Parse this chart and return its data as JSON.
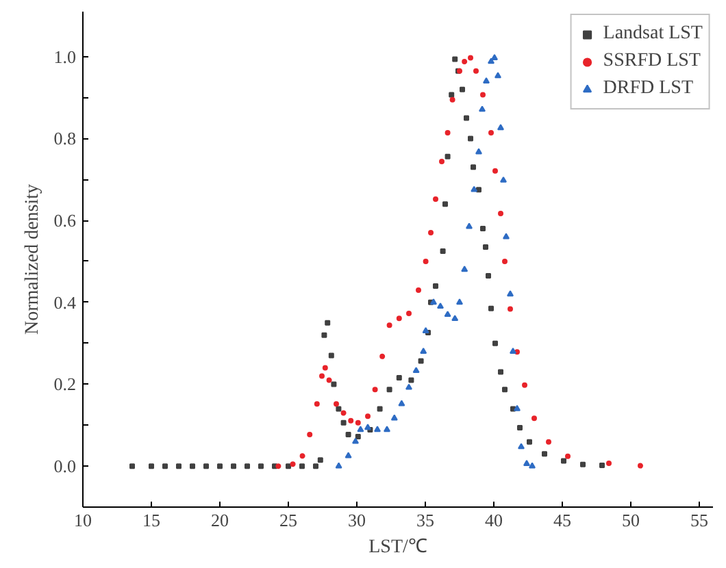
{
  "chart_data": {
    "type": "scatter",
    "xlabel": "LST/℃",
    "ylabel": "Normalized density",
    "xlim": [
      10,
      56
    ],
    "ylim": [
      -0.1,
      1.11
    ],
    "xticks": [
      10,
      15,
      20,
      25,
      30,
      35,
      40,
      45,
      50,
      55
    ],
    "yticks": [
      {
        "value": 0,
        "label": "0.0"
      },
      {
        "value": 0.1,
        "label": null
      },
      {
        "value": 0.2,
        "label": "0.2"
      },
      {
        "value": 0.3,
        "label": null
      },
      {
        "value": 0.4,
        "label": "0.4"
      },
      {
        "value": 0.5,
        "label": null
      },
      {
        "value": 0.6,
        "label": "0.6"
      },
      {
        "value": 0.7,
        "label": null
      },
      {
        "value": 0.8,
        "label": "0.8"
      },
      {
        "value": 0.9,
        "label": null
      },
      {
        "value": 1.0,
        "label": "1.0"
      }
    ],
    "grid": false,
    "legend": "top right",
    "series": [
      {
        "name": "Landsat LST",
        "color": "#404040",
        "marker": "square",
        "x": [
          13.6,
          15,
          16,
          17,
          18,
          19,
          20,
          21,
          22,
          23,
          24,
          25,
          26,
          27,
          27.34,
          27.62,
          27.86,
          28.14,
          28.32,
          28.67,
          29.03,
          29.38,
          30.09,
          30.97,
          31.68,
          32.38,
          33.09,
          33.97,
          34.68,
          35.2,
          35.4,
          35.75,
          36.28,
          36.45,
          36.63,
          36.91,
          37.16,
          37.4,
          37.7,
          38.0,
          38.3,
          38.5,
          38.9,
          39.2,
          39.4,
          39.6,
          39.8,
          40.1,
          40.5,
          40.8,
          41.4,
          41.9,
          42.6,
          43.7,
          45.1,
          46.5,
          47.9
        ],
        "values": [
          0,
          0,
          0,
          0,
          0,
          0,
          0,
          0,
          0,
          0,
          0,
          0,
          0,
          0,
          0.015,
          0.32,
          0.35,
          0.27,
          0.2,
          0.14,
          0.106,
          0.077,
          0.072,
          0.089,
          0.14,
          0.187,
          0.216,
          0.21,
          0.257,
          0.326,
          0.4,
          0.44,
          0.525,
          0.64,
          0.756,
          0.907,
          0.994,
          0.965,
          0.92,
          0.85,
          0.8,
          0.73,
          0.675,
          0.58,
          0.535,
          0.465,
          0.385,
          0.3,
          0.23,
          0.187,
          0.14,
          0.094,
          0.059,
          0.03,
          0.013,
          0.004,
          0.002
        ]
      },
      {
        "name": "SSRFD LST",
        "color": "#e8232a",
        "marker": "circle",
        "x": [
          24.27,
          25.33,
          26.03,
          26.56,
          27.09,
          27.45,
          27.69,
          27.98,
          28.5,
          29.03,
          29.56,
          30.09,
          30.8,
          31.33,
          31.86,
          32.38,
          33.09,
          33.8,
          34.5,
          35.03,
          35.4,
          35.75,
          36.2,
          36.63,
          36.98,
          37.5,
          37.86,
          38.3,
          38.7,
          39.2,
          39.8,
          40.1,
          40.5,
          40.8,
          41.2,
          41.7,
          42.25,
          42.95,
          44.0,
          45.4,
          48.4,
          50.7
        ],
        "values": [
          0,
          0.005,
          0.025,
          0.077,
          0.152,
          0.22,
          0.24,
          0.21,
          0.152,
          0.13,
          0.111,
          0.106,
          0.122,
          0.187,
          0.268,
          0.344,
          0.361,
          0.373,
          0.43,
          0.5,
          0.57,
          0.652,
          0.744,
          0.814,
          0.895,
          0.965,
          0.988,
          0.997,
          0.965,
          0.907,
          0.814,
          0.721,
          0.617,
          0.5,
          0.384,
          0.279,
          0.198,
          0.117,
          0.059,
          0.024,
          0.007,
          0.001
        ]
      },
      {
        "name": "DRFD LST",
        "color": "#2e6cc4",
        "marker": "triangle",
        "x": [
          28.68,
          29.38,
          29.9,
          30.27,
          30.8,
          31.5,
          32.2,
          32.74,
          33.27,
          33.8,
          34.33,
          34.86,
          35.03,
          35.6,
          36.1,
          36.63,
          37.16,
          37.5,
          37.86,
          38.2,
          38.56,
          38.9,
          39.15,
          39.45,
          39.8,
          40.05,
          40.3,
          40.5,
          40.7,
          40.9,
          41.2,
          41.4,
          41.7,
          42.0,
          42.4,
          42.8
        ],
        "values": [
          0,
          0.025,
          0.06,
          0.089,
          0.094,
          0.089,
          0.089,
          0.117,
          0.152,
          0.192,
          0.233,
          0.28,
          0.33,
          0.4,
          0.39,
          0.37,
          0.36,
          0.4,
          0.48,
          0.585,
          0.675,
          0.767,
          0.871,
          0.94,
          0.988,
          0.997,
          0.953,
          0.826,
          0.698,
          0.56,
          0.42,
          0.28,
          0.14,
          0.047,
          0.006,
          0
        ]
      }
    ]
  }
}
